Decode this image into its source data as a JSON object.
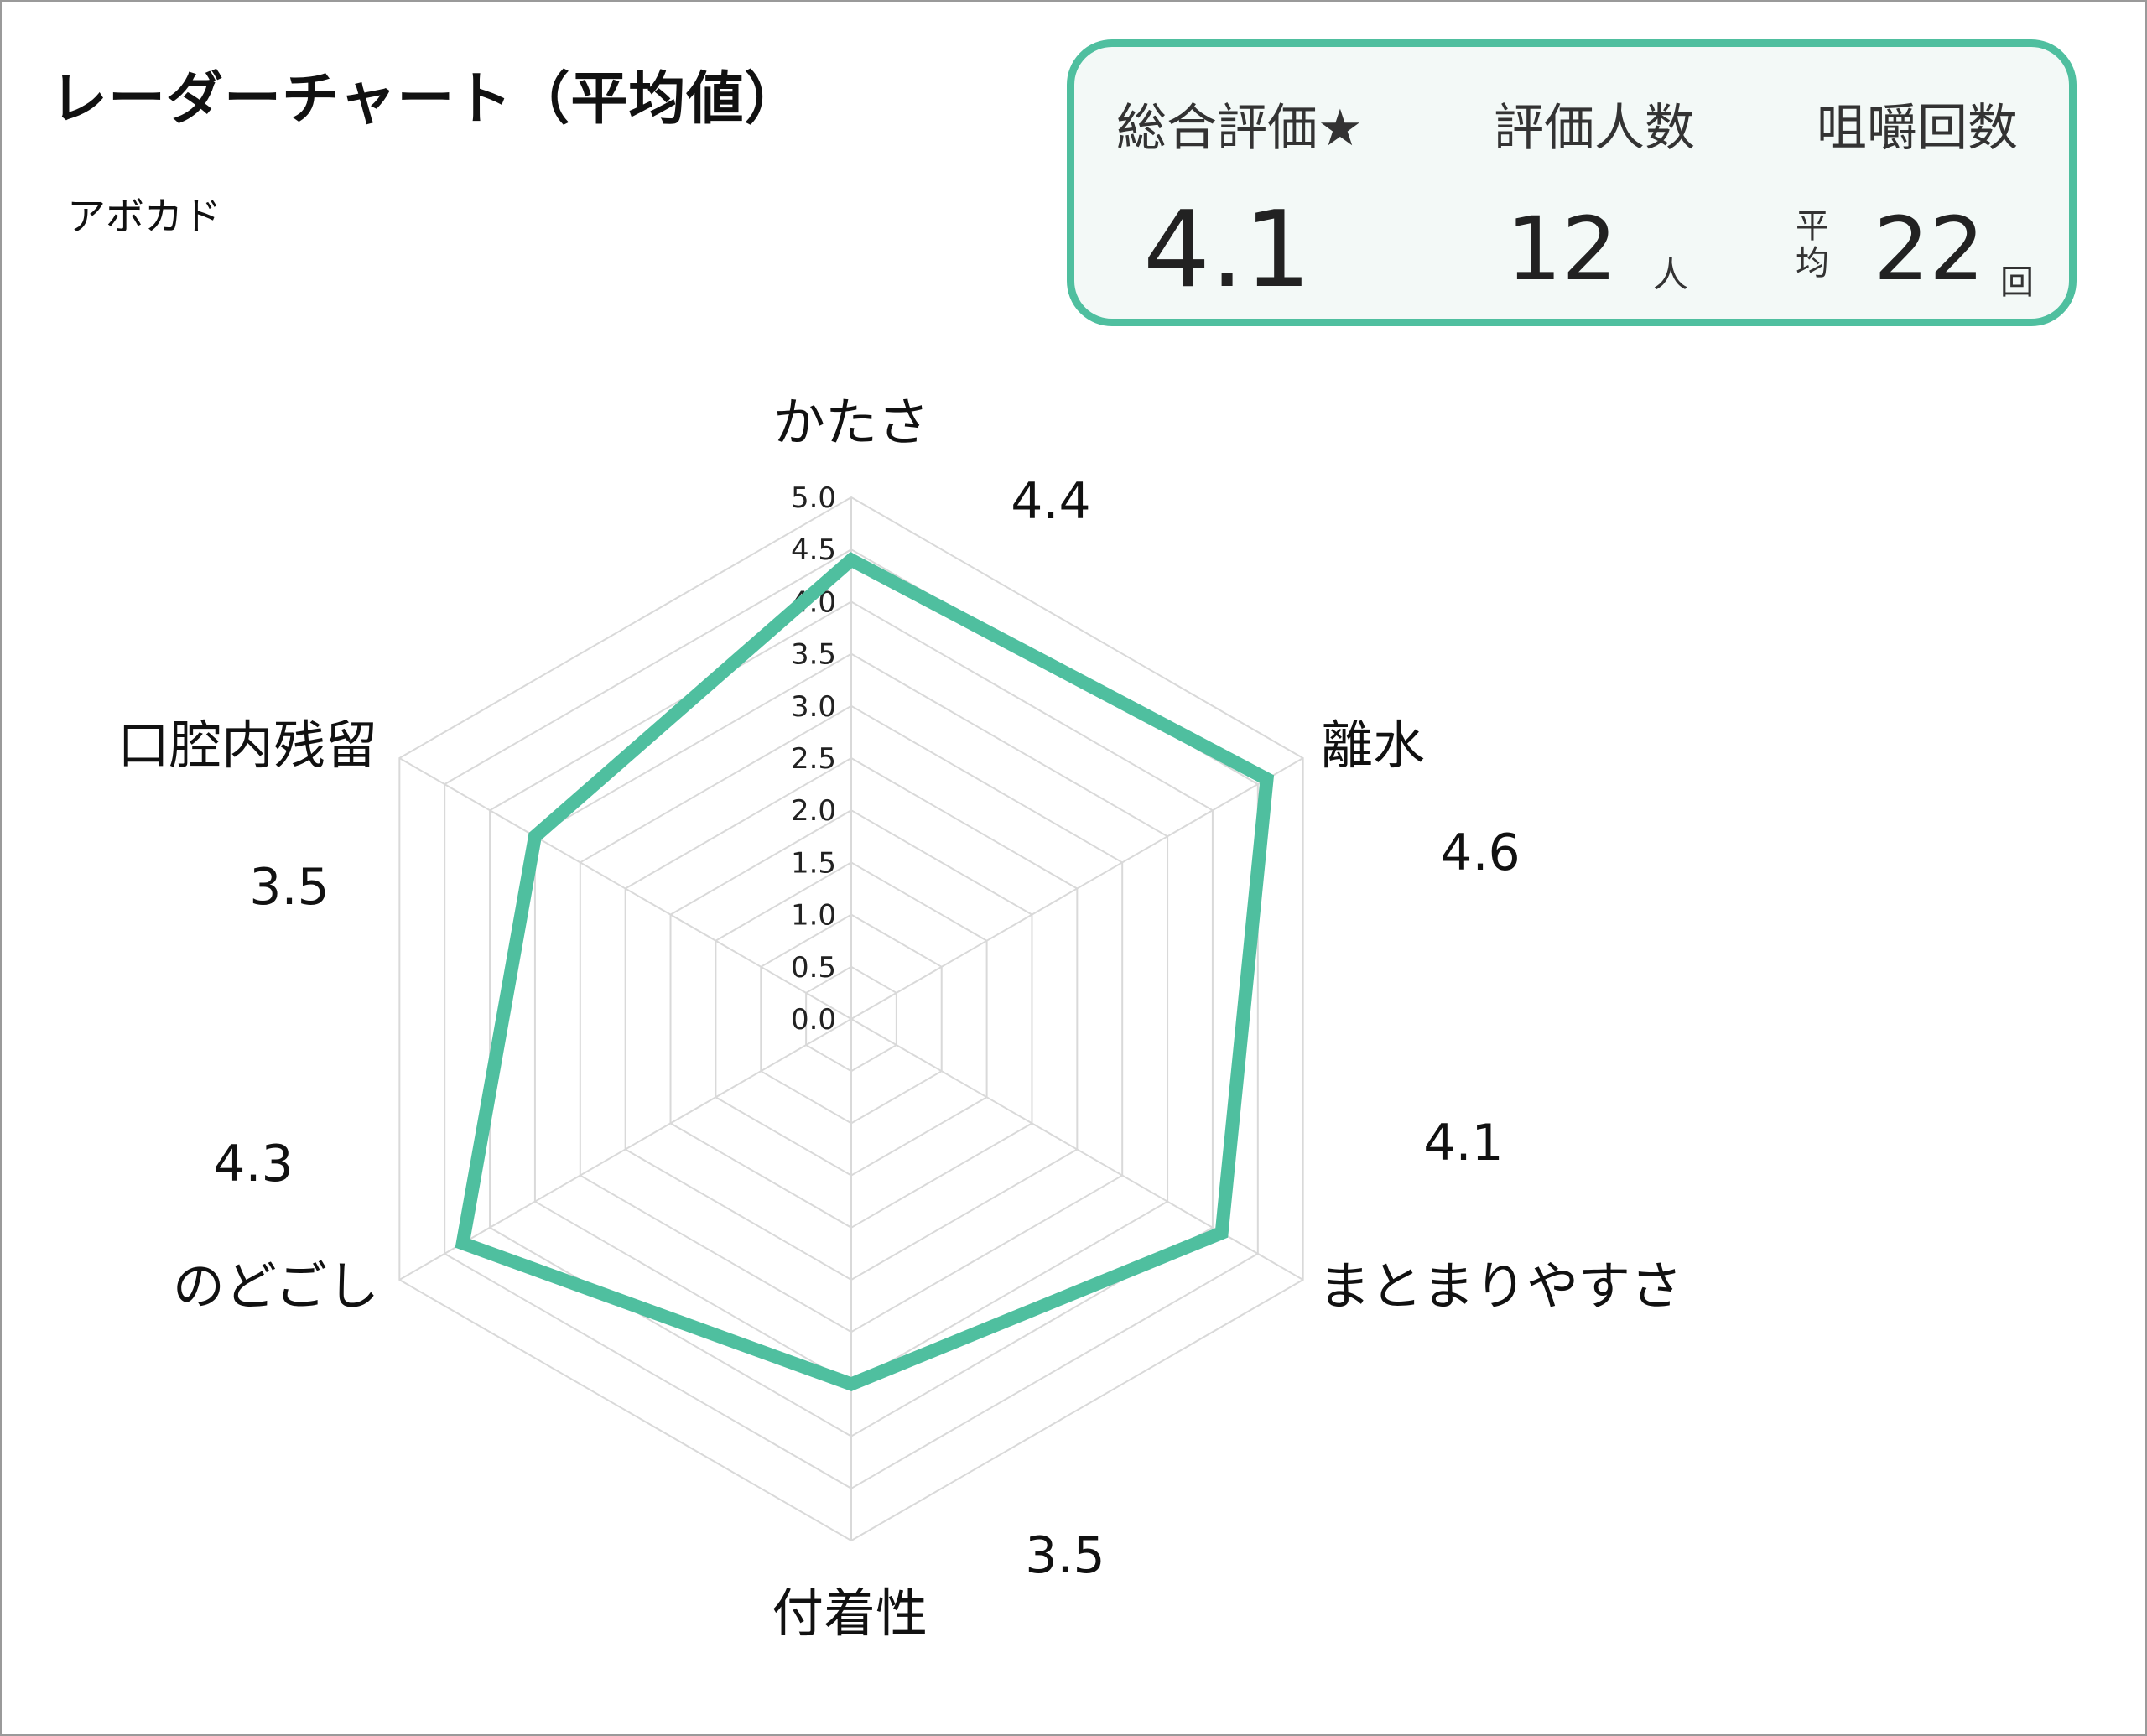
{
  "header": {
    "title": "レーダーチャート（平均値）",
    "subject": "アボカド"
  },
  "summary": {
    "overall_label": "総合評価★",
    "overall_value": "4.1",
    "raters_label": "評価人数",
    "raters_value": "12",
    "raters_unit": "人",
    "chews_label": "咀嚼回数",
    "chews_prefix": "平均",
    "chews_value": "22",
    "chews_unit": "回"
  },
  "colors": {
    "series": "#4fbf9f",
    "grid": "#d9d9d9",
    "border": "#9a9a9a"
  },
  "chart_data": {
    "type": "radar",
    "categories": [
      "かたさ",
      "離水",
      "まとまりやすさ",
      "付着性",
      "のどごし",
      "口腔内残留"
    ],
    "series": [
      {
        "values": [
          4.4,
          4.6,
          4.1,
          3.5,
          4.3,
          3.5
        ]
      }
    ],
    "data_labels": [
      "4.4",
      "4.6",
      "4.1",
      "3.5",
      "4.3",
      "3.5"
    ],
    "rlim": [
      0,
      5
    ],
    "ticks": [
      "0.0",
      "0.5",
      "1.0",
      "1.5",
      "2.0",
      "2.5",
      "3.0",
      "3.5",
      "4.0",
      "4.5",
      "5.0"
    ],
    "grid": true,
    "legend": "none"
  }
}
